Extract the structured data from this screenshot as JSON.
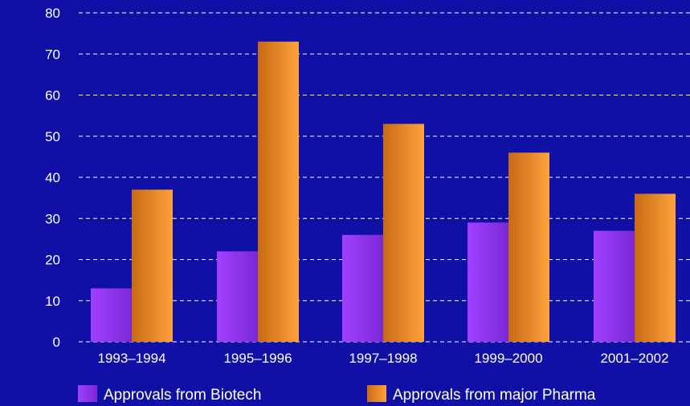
{
  "colors": {
    "background": "#1010a6",
    "grid": "#ffffff",
    "text": "#ffffff",
    "biotech_light": "#a040ff",
    "biotech_dark": "#7a28d6",
    "pharma_light": "#ffa23c",
    "pharma_dark": "#c86a14"
  },
  "chart_data": {
    "type": "bar",
    "title": "",
    "xlabel": "",
    "ylabel": "",
    "ylim": [
      0,
      80
    ],
    "yticks": [
      0,
      10,
      20,
      30,
      40,
      50,
      60,
      70,
      80
    ],
    "categories": [
      "1993–1994",
      "1995–1996",
      "1997–1998",
      "1999–2000",
      "2001–2002"
    ],
    "series": [
      {
        "name": "Approvals from Biotech",
        "values": [
          13,
          22,
          26,
          29,
          27
        ]
      },
      {
        "name": "Approvals from major Pharma",
        "values": [
          37,
          73,
          53,
          46,
          36
        ]
      }
    ],
    "grid": true,
    "legend_position": "bottom"
  }
}
